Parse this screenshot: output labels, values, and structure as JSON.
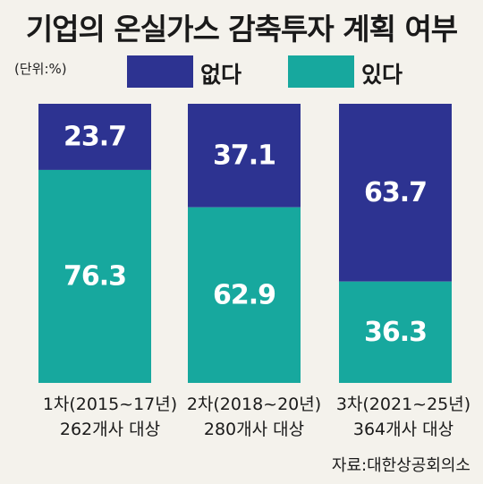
{
  "title": "기업의 온실가스 감축투자 계획 여부",
  "unit": "(단위:%)",
  "source": "자료:대한상공회의소",
  "colors": {
    "none": "#2d3391",
    "have": "#17a89e"
  },
  "chart_data": {
    "type": "bar",
    "stacked": true,
    "normalized_100": true,
    "categories": [
      {
        "line1": "1차(2015~17년)",
        "line2": "262개사 대상"
      },
      {
        "line1": "2차(2018~20년)",
        "line2": "280개사 대상"
      },
      {
        "line1": "3차(2021~25년)",
        "line2": "364개사 대상"
      }
    ],
    "series": [
      {
        "name": "없다",
        "values": [
          23.7,
          37.1,
          63.7
        ]
      },
      {
        "name": "있다",
        "values": [
          76.3,
          62.9,
          36.3
        ]
      }
    ],
    "ylim": [
      0,
      100
    ],
    "legend_position": "top",
    "grid": false
  }
}
